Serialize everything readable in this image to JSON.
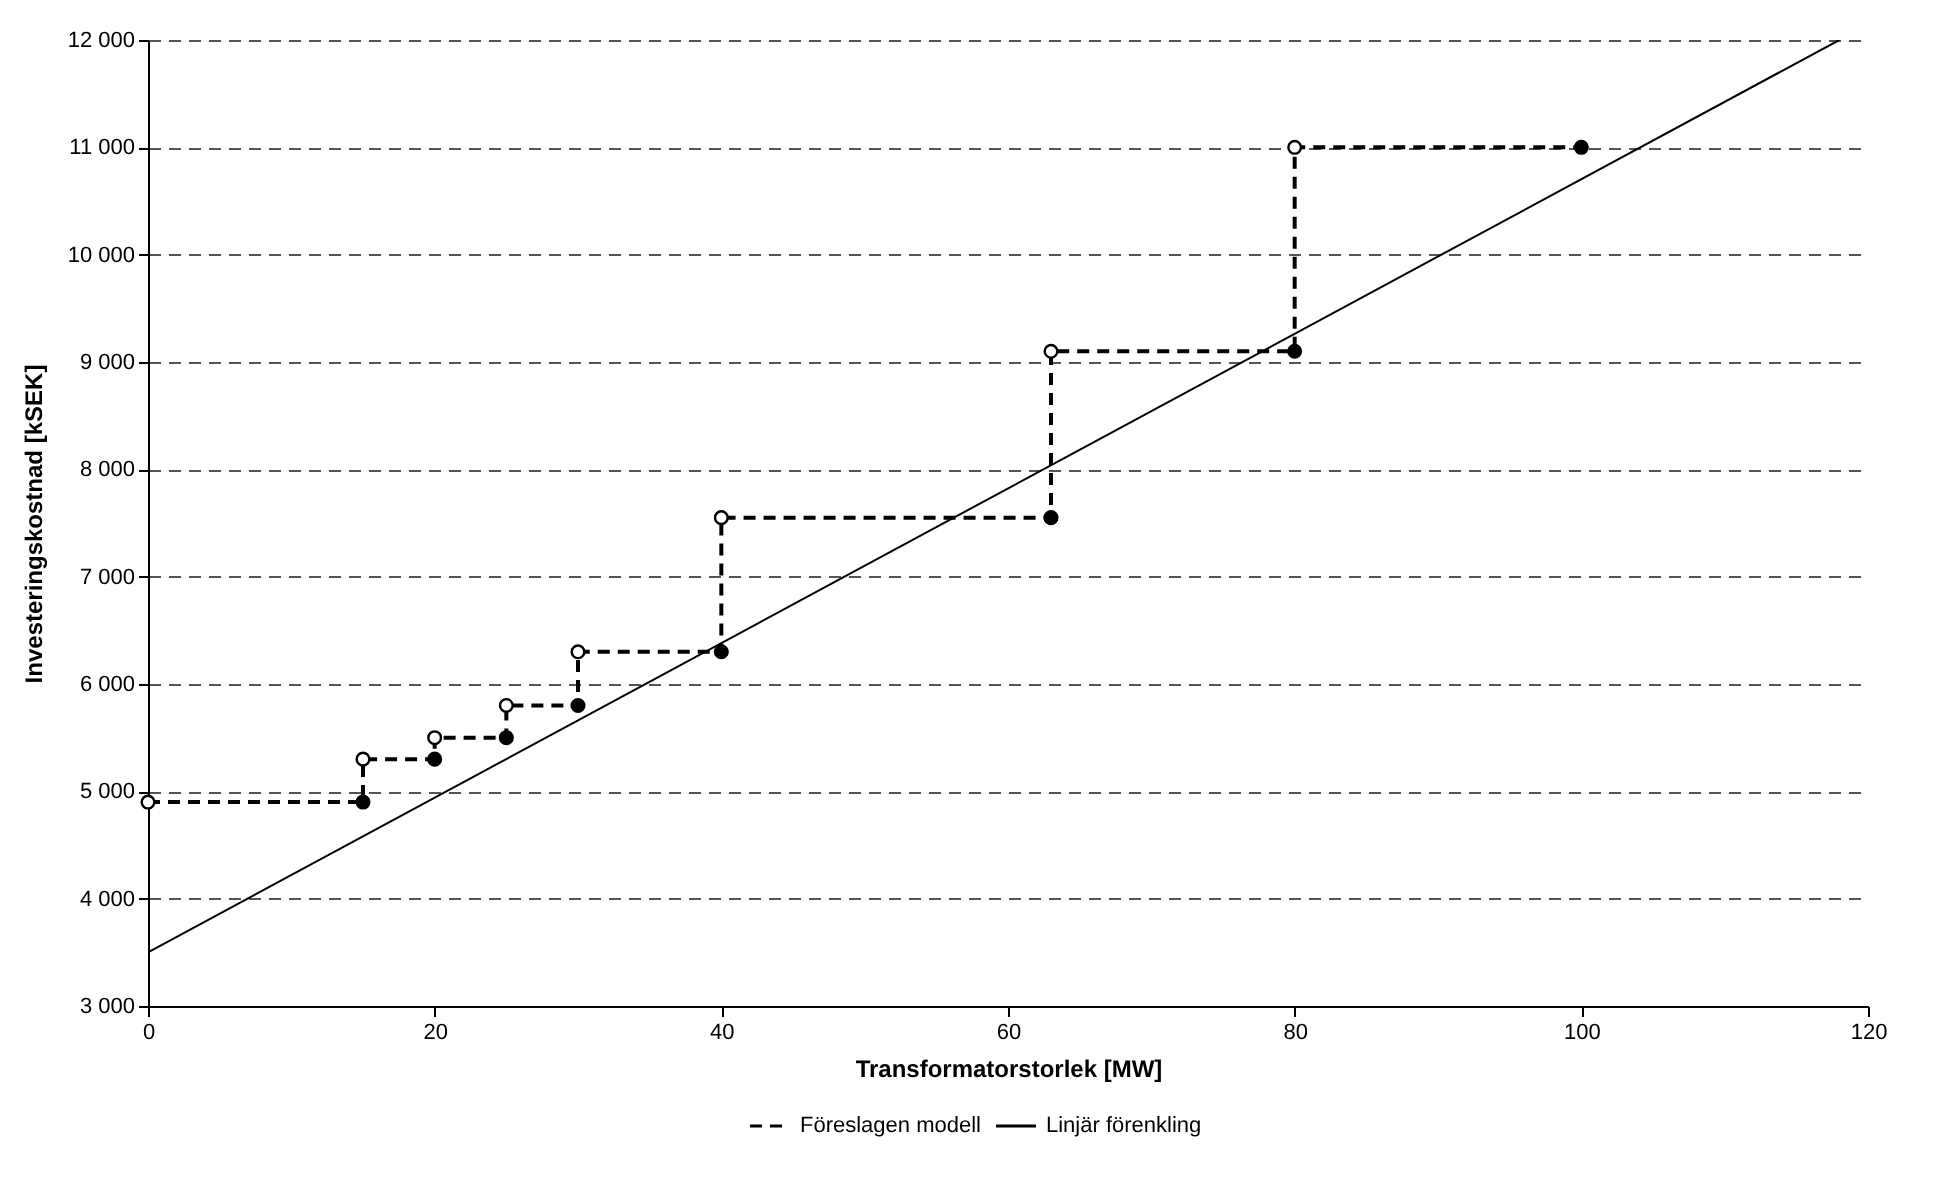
{
  "chart_data": {
    "type": "line",
    "xlabel": "Transformatorstorlek [MW]",
    "ylabel": "Investeringskostnad [kSEK]",
    "series": [
      {
        "name": "Föreslagen modell",
        "color": "#000000",
        "line_style": "dashed",
        "marker": "circle",
        "x": [
          0,
          15,
          15,
          20,
          20,
          25,
          25,
          30,
          30,
          40,
          40,
          63,
          63,
          80,
          80,
          100
        ],
        "values": [
          4900,
          4900,
          5300,
          5300,
          5500,
          5500,
          5800,
          5800,
          6300,
          6300,
          7550,
          7550,
          9100,
          9100,
          11000,
          11000
        ]
      },
      {
        "name": "Linjär förenkling",
        "color": "#000000",
        "line_style": "solid",
        "marker": "none",
        "x": [
          0,
          118
        ],
        "values": [
          3500,
          12000
        ]
      }
    ],
    "xlim": [
      0,
      120
    ],
    "xticks": [
      0,
      20,
      40,
      60,
      80,
      100,
      120
    ],
    "ylim": [
      3000,
      12000
    ],
    "yticks": [
      {
        "value": 3000,
        "label": "3 000"
      },
      {
        "value": 4000,
        "label": "4 000"
      },
      {
        "value": 5000,
        "label": "5 000"
      },
      {
        "value": 6000,
        "label": "6 000"
      },
      {
        "value": 7000,
        "label": "7 000"
      },
      {
        "value": 8000,
        "label": "8 000"
      },
      {
        "value": 9000,
        "label": "9 000"
      },
      {
        "value": 10000,
        "label": "10 000"
      },
      {
        "value": 11000,
        "label": "11 000"
      },
      {
        "value": 12000,
        "label": "12 000"
      }
    ],
    "grid": "y",
    "legend": "bottom"
  }
}
